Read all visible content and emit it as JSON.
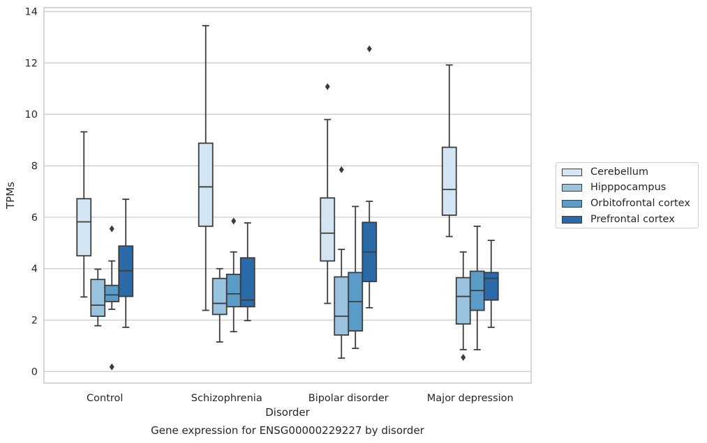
{
  "chart_data": {
    "type": "boxplot",
    "title": "Gene expression for ENSG00000229227 by disorder",
    "xlabel": "Disorder",
    "ylabel": "TPMs",
    "ylim": [
      -0.45,
      14.15
    ],
    "yticks": [
      0,
      2,
      4,
      6,
      8,
      10,
      12,
      14
    ],
    "grid": "horizontal",
    "legend_position": "right",
    "categories": [
      "Control",
      "Schizophrenia",
      "Bipolar disorder",
      "Major depression"
    ],
    "series": [
      {
        "name": "Cerebellum",
        "color": "#d3e4f3",
        "boxes": [
          {
            "whisker_low": 2.9,
            "q1": 4.5,
            "median": 5.82,
            "q3": 6.72,
            "whisker_high": 9.32,
            "outliers": []
          },
          {
            "whisker_low": 2.38,
            "q1": 5.65,
            "median": 7.18,
            "q3": 8.88,
            "whisker_high": 13.45,
            "outliers": []
          },
          {
            "whisker_low": 2.65,
            "q1": 4.3,
            "median": 5.38,
            "q3": 6.75,
            "whisker_high": 9.8,
            "outliers": [
              11.08
            ]
          },
          {
            "whisker_low": 5.25,
            "q1": 6.08,
            "median": 7.08,
            "q3": 8.72,
            "whisker_high": 11.92,
            "outliers": []
          }
        ]
      },
      {
        "name": "Hipppocampus",
        "color": "#9ac3df",
        "boxes": [
          {
            "whisker_low": 1.78,
            "q1": 2.15,
            "median": 2.58,
            "q3": 3.58,
            "whisker_high": 3.98,
            "outliers": []
          },
          {
            "whisker_low": 1.15,
            "q1": 2.22,
            "median": 2.65,
            "q3": 3.62,
            "whisker_high": 4.0,
            "outliers": []
          },
          {
            "whisker_low": 0.52,
            "q1": 1.42,
            "median": 2.15,
            "q3": 3.68,
            "whisker_high": 4.75,
            "outliers": [
              7.85
            ]
          },
          {
            "whisker_low": 0.85,
            "q1": 1.85,
            "median": 2.92,
            "q3": 3.65,
            "whisker_high": 4.65,
            "outliers": [
              0.55
            ]
          }
        ]
      },
      {
        "name": "Orbitofrontal cortex",
        "color": "#5a9bc7",
        "boxes": [
          {
            "whisker_low": 2.42,
            "q1": 2.72,
            "median": 2.98,
            "q3": 3.35,
            "whisker_high": 4.3,
            "outliers": [
              5.55,
              0.18
            ]
          },
          {
            "whisker_low": 1.55,
            "q1": 2.52,
            "median": 3.02,
            "q3": 3.78,
            "whisker_high": 4.65,
            "outliers": [
              5.85
            ]
          },
          {
            "whisker_low": 0.9,
            "q1": 1.58,
            "median": 2.72,
            "q3": 3.85,
            "whisker_high": 6.42,
            "outliers": []
          },
          {
            "whisker_low": 0.85,
            "q1": 2.38,
            "median": 3.15,
            "q3": 3.9,
            "whisker_high": 5.65,
            "outliers": []
          }
        ]
      },
      {
        "name": "Prefrontal cortex",
        "color": "#2b6aa8",
        "boxes": [
          {
            "whisker_low": 1.72,
            "q1": 2.92,
            "median": 3.92,
            "q3": 4.88,
            "whisker_high": 6.7,
            "outliers": []
          },
          {
            "whisker_low": 1.98,
            "q1": 2.52,
            "median": 2.78,
            "q3": 4.42,
            "whisker_high": 5.78,
            "outliers": []
          },
          {
            "whisker_low": 2.48,
            "q1": 3.5,
            "median": 4.65,
            "q3": 5.8,
            "whisker_high": 6.62,
            "outliers": [
              12.55
            ]
          },
          {
            "whisker_low": 1.72,
            "q1": 2.78,
            "median": 3.62,
            "q3": 3.85,
            "whisker_high": 5.1,
            "outliers": []
          }
        ]
      }
    ]
  }
}
